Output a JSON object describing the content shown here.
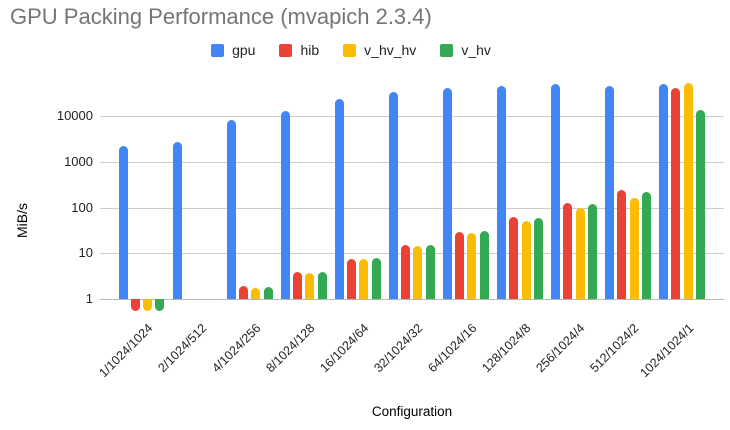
{
  "chart_data": {
    "type": "bar",
    "title": "GPU Packing Performance (mvapich 2.3.4)",
    "xlabel": "Configuration",
    "ylabel": "MiB/s",
    "y_scale": "log",
    "y_ticks": [
      "1",
      "10",
      "100",
      "1000",
      "10000"
    ],
    "ylim": [
      0.5,
      80000
    ],
    "grid": true,
    "legend_position": "top",
    "categories": [
      "1/1024/1024",
      "2/1024/512",
      "4/1024/256",
      "8/1024/128",
      "16/1024/64",
      "32/1024/32",
      "64/1024/16",
      "128/1024/8",
      "256/1024/4",
      "512/1024/2",
      "1024/1024/1"
    ],
    "series": [
      {
        "name": "gpu",
        "color": "#4285F4",
        "values": [
          2200,
          2750,
          8300,
          13000,
          24000,
          35000,
          42000,
          45500,
          50000,
          47000,
          52000
        ]
      },
      {
        "name": "hib",
        "color": "#EA4335",
        "values": [
          0.55,
          null,
          1.9,
          3.9,
          7.6,
          15,
          30,
          61,
          125,
          245,
          41000
        ]
      },
      {
        "name": "v_hv_hv",
        "color": "#FBBC04",
        "values": [
          0.55,
          null,
          1.7,
          3.8,
          7.5,
          14.5,
          28,
          52,
          100,
          165,
          54000
        ]
      },
      {
        "name": "v_hv",
        "color": "#34A853",
        "values": [
          0.55,
          null,
          1.85,
          3.9,
          7.8,
          15.5,
          31,
          60,
          120,
          225,
          13500
        ]
      }
    ]
  },
  "colors": {
    "title_text": "#757575",
    "axis_text": "#222222",
    "gridline": "#cccccc",
    "baseline": "#b7b7b7",
    "background": "#ffffff"
  }
}
